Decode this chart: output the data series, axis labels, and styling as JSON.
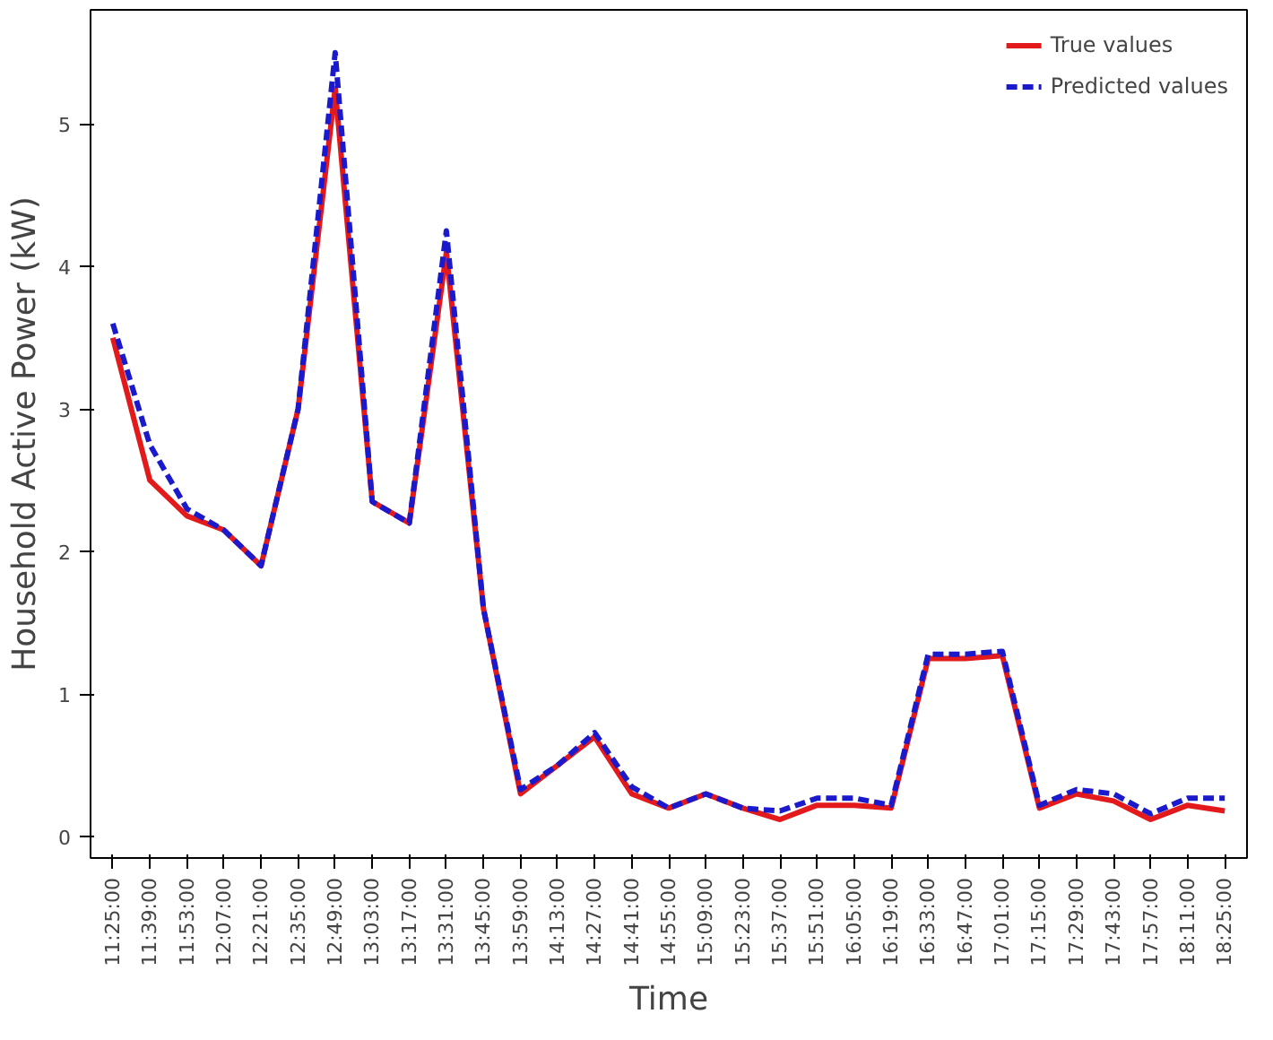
{
  "chart_data": {
    "type": "line",
    "xlabel": "Time",
    "ylabel": "Household Active Power (kW)",
    "categories": [
      "11:25:00",
      "11:39:00",
      "11:53:00",
      "12:07:00",
      "12:21:00",
      "12:35:00",
      "12:49:00",
      "13:03:00",
      "13:17:00",
      "13:31:00",
      "13:45:00",
      "13:59:00",
      "14:13:00",
      "14:27:00",
      "14:41:00",
      "14:55:00",
      "15:09:00",
      "15:23:00",
      "15:37:00",
      "15:51:00",
      "16:05:00",
      "16:19:00",
      "16:33:00",
      "16:47:00",
      "17:01:00",
      "17:15:00",
      "17:29:00",
      "17:43:00",
      "17:57:00",
      "18:11:00",
      "18:25:00"
    ],
    "series": [
      {
        "name": "True values",
        "color": "#e31a1c",
        "line_style": "solid",
        "values": [
          3.5,
          2.5,
          2.25,
          2.15,
          1.9,
          3.0,
          5.25,
          2.35,
          2.2,
          4.1,
          1.6,
          0.3,
          0.5,
          0.7,
          0.3,
          0.2,
          0.3,
          0.2,
          0.12,
          0.22,
          0.22,
          0.2,
          1.25,
          1.25,
          1.27,
          0.2,
          0.3,
          0.25,
          0.12,
          0.22,
          0.18
        ]
      },
      {
        "name": "Predicted values",
        "color": "#1a1acc",
        "line_style": "dashed",
        "values": [
          3.6,
          2.75,
          2.3,
          2.15,
          1.9,
          3.0,
          5.5,
          2.35,
          2.2,
          4.25,
          1.6,
          0.33,
          0.5,
          0.73,
          0.35,
          0.2,
          0.3,
          0.2,
          0.18,
          0.27,
          0.27,
          0.22,
          1.28,
          1.28,
          1.3,
          0.22,
          0.33,
          0.3,
          0.16,
          0.27,
          0.27
        ]
      }
    ],
    "ylim": [
      -0.15,
      5.8
    ],
    "yticks": [
      0,
      1,
      2,
      3,
      4,
      5
    ],
    "grid": false,
    "legend": "top right",
    "marker": "none"
  }
}
